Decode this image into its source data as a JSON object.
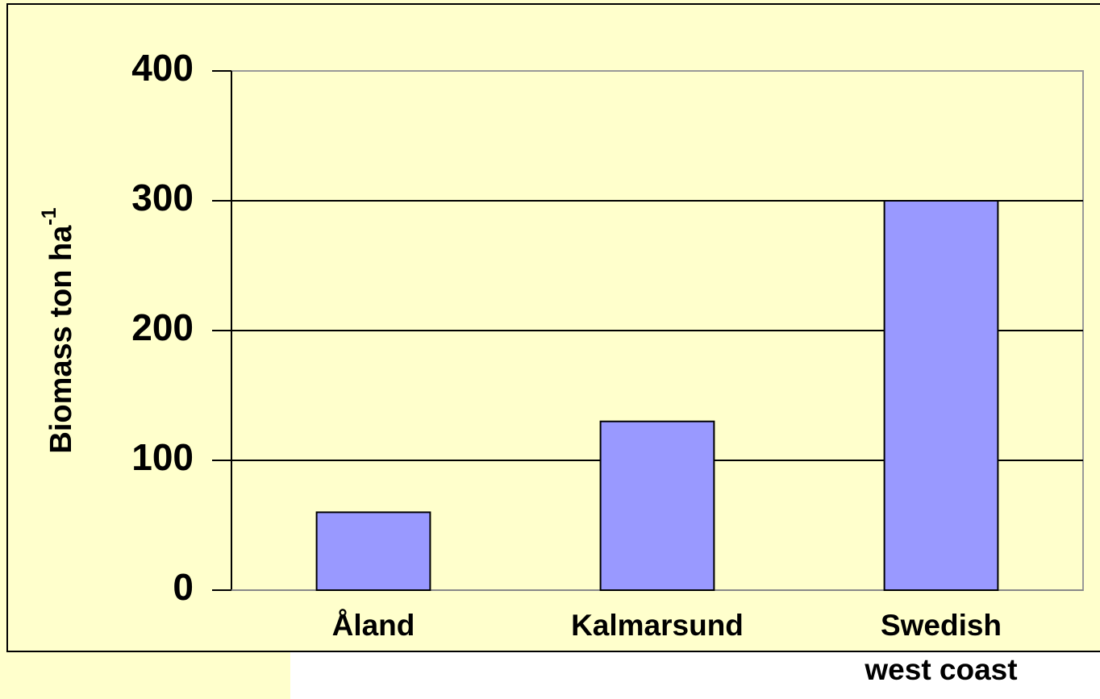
{
  "chart_data": {
    "type": "bar",
    "ylabel": "Biomass  ton ha",
    "ylabel_superscript": "-1",
    "categories": [
      "Åland",
      "Kalmarsund",
      "Swedish\nwest coast"
    ],
    "values": [
      60,
      130,
      300
    ],
    "color": "#9999ff",
    "ylim": [
      0,
      400
    ],
    "yticks": [
      0,
      100,
      200,
      300,
      400
    ],
    "grid": true
  }
}
